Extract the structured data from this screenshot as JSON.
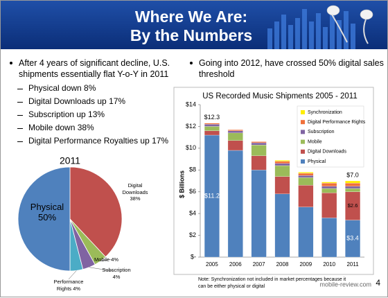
{
  "header": {
    "title_lines": [
      "Where We Are:",
      "By the Numbers"
    ]
  },
  "left_bullet": {
    "text": "After 4 years of significant decline, U.S. shipments essentially flat Y-o-Y in 2011",
    "subitems": [
      "Physical down 8%",
      "Digital Downloads up 17%",
      "Subscription up 13%",
      "Mobile down 38%",
      "Digital Performance Royalties up 17%"
    ]
  },
  "right_bullet": {
    "text": "Going into 2012, have crossed 50% digital sales threshold"
  },
  "page_number": "4",
  "watermark": "mobile-review.com",
  "chart_data": [
    {
      "type": "pie",
      "title": "2011",
      "categories": [
        "Digital Downloads",
        "Mobile",
        "Subscription",
        "Performance Rights",
        "Physical"
      ],
      "values": [
        38,
        4,
        4,
        4,
        50
      ],
      "value_labels": [
        "38%",
        "4%",
        "4%",
        "4%",
        "50%"
      ],
      "colors": [
        "#c0504d",
        "#9bbb59",
        "#8064a2",
        "#4bacc6",
        "#4f81bd"
      ]
    },
    {
      "type": "stacked_bar",
      "title": "US Recorded Music Shipments 2005 - 2011",
      "ylabel": "$ Billions",
      "categories": [
        "2005",
        "2006",
        "2007",
        "2008",
        "2009",
        "2010",
        "2011"
      ],
      "series": [
        {
          "name": "Physical",
          "color": "#4f81bd",
          "values": [
            11.2,
            9.8,
            8.0,
            5.8,
            4.6,
            3.6,
            3.4
          ],
          "value_labels": [
            "$11.2",
            null,
            null,
            null,
            null,
            null,
            "$3.4"
          ]
        },
        {
          "name": "Digital Downloads",
          "color": "#c0504d",
          "values": [
            0.4,
            0.9,
            1.3,
            1.6,
            2.0,
            2.3,
            2.6
          ],
          "value_labels": [
            null,
            null,
            null,
            null,
            null,
            null,
            "$2.6"
          ]
        },
        {
          "name": "Mobile",
          "color": "#9bbb59",
          "values": [
            0.4,
            0.7,
            1.0,
            1.0,
            0.7,
            0.4,
            0.3
          ]
        },
        {
          "name": "Subscription",
          "color": "#8064a2",
          "values": [
            0.2,
            0.2,
            0.2,
            0.2,
            0.2,
            0.2,
            0.2
          ]
        },
        {
          "name": "Digital Performance Rights",
          "color": "#f0703a",
          "values": [
            0.1,
            0.1,
            0.1,
            0.2,
            0.2,
            0.3,
            0.3
          ]
        },
        {
          "name": "Synchronization",
          "color": "#ffee00",
          "values": [
            0.0,
            0.0,
            0.0,
            0.1,
            0.1,
            0.1,
            0.2
          ]
        }
      ],
      "total_labels": [
        "$12.3",
        null,
        null,
        null,
        null,
        null,
        "$7.0"
      ],
      "ylim": [
        0,
        14
      ],
      "yticks": [
        {
          "value": 0,
          "label": "$-"
        },
        {
          "value": 2,
          "label": "$2"
        },
        {
          "value": 4,
          "label": "$4"
        },
        {
          "value": 6,
          "label": "$6"
        },
        {
          "value": 8,
          "label": "$8"
        },
        {
          "value": 10,
          "label": "$10"
        },
        {
          "value": 12,
          "label": "$12"
        },
        {
          "value": 14,
          "label": "$14"
        }
      ],
      "legend": "upper right",
      "note_lines": [
        "Note: Synchronization not included in market percentages because it",
        "can be either physical or digital"
      ]
    }
  ]
}
